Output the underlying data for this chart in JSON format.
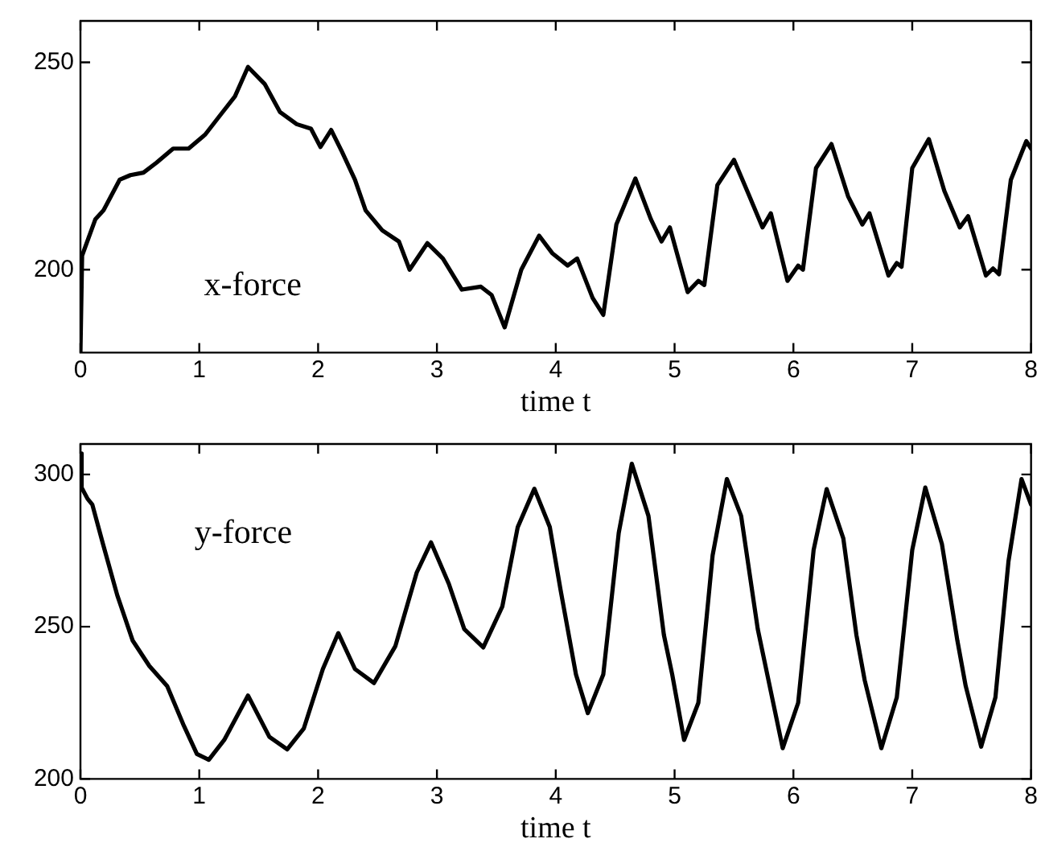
{
  "chart_data": [
    {
      "type": "line",
      "xlabel": "time t",
      "annotations": [
        "x-force"
      ],
      "xlim": [
        0,
        8
      ],
      "xticks": [
        0,
        1,
        2,
        3,
        4,
        5,
        6,
        7,
        8
      ],
      "ylim": [
        180,
        260
      ],
      "yticks": [
        200,
        250
      ],
      "grid": false,
      "legend": false,
      "marker": "none",
      "line_style": "solid",
      "x": [
        0,
        0.014,
        0.126,
        0.194,
        0.33,
        0.42,
        0.53,
        0.64,
        0.78,
        0.91,
        1.05,
        1.18,
        1.3,
        1.41,
        1.55,
        1.68,
        1.82,
        1.94,
        2.02,
        2.11,
        2.2,
        2.31,
        2.4,
        2.54,
        2.68,
        2.77,
        2.92,
        3.05,
        3.21,
        3.37,
        3.46,
        3.57,
        3.71,
        3.86,
        3.97,
        4.1,
        4.18,
        4.31,
        4.4,
        4.51,
        4.67,
        4.8,
        4.89,
        4.96,
        5.11,
        5.2,
        5.25,
        5.36,
        5.5,
        5.63,
        5.74,
        5.81,
        5.95,
        6.04,
        6.08,
        6.19,
        6.32,
        6.46,
        6.58,
        6.64,
        6.8,
        6.87,
        6.91,
        7,
        7.14,
        7.27,
        7.4,
        7.47,
        7.62,
        7.68,
        7.73,
        7.83,
        7.96,
        8
      ],
      "series": [
        {
          "color": "#000000",
          "values": [
            180,
            203.4,
            212.2,
            214.3,
            221.7,
            222.8,
            223.4,
            225.8,
            229.2,
            229.2,
            232.6,
            237.4,
            241.8,
            248.9,
            244.8,
            238,
            235.1,
            234,
            229.6,
            233.7,
            228.5,
            221.7,
            214.3,
            209.5,
            206.8,
            200,
            206.4,
            202.7,
            195.2,
            195.9,
            193.9,
            186.1,
            200,
            208.2,
            204,
            201,
            202.7,
            193.2,
            189.1,
            210.9,
            222,
            212.2,
            206.8,
            210.2,
            194.6,
            197.3,
            196.3,
            220.4,
            226.5,
            217.7,
            210.2,
            213.6,
            197.3,
            201,
            200,
            224.5,
            230.3,
            217.7,
            210.9,
            213.6,
            198.6,
            201.6,
            200.7,
            224.5,
            231.5,
            219,
            210.2,
            212.9,
            198.6,
            200.3,
            198.9,
            221.7,
            231,
            229.2
          ]
        }
      ]
    },
    {
      "type": "line",
      "xlabel": "time t",
      "annotations": [
        "y-force"
      ],
      "xlim": [
        0,
        8
      ],
      "xticks": [
        0,
        1,
        2,
        3,
        4,
        5,
        6,
        7,
        8
      ],
      "ylim": [
        200,
        310
      ],
      "yticks": [
        200,
        250,
        300
      ],
      "grid": false,
      "legend": false,
      "marker": "none",
      "line_style": "solid",
      "x": [
        0,
        0.01,
        0.06,
        0.1,
        0.19,
        0.31,
        0.44,
        0.58,
        0.73,
        0.87,
        0.98,
        1.08,
        1.21,
        1.41,
        1.59,
        1.74,
        1.88,
        2.04,
        2.17,
        2.31,
        2.47,
        2.65,
        2.83,
        2.95,
        3.1,
        3.23,
        3.39,
        3.55,
        3.68,
        3.82,
        3.95,
        4.04,
        4.17,
        4.27,
        4.4,
        4.53,
        4.64,
        4.78,
        4.91,
        4.98,
        5.08,
        5.2,
        5.32,
        5.44,
        5.56,
        5.7,
        5.78,
        5.91,
        6.04,
        6.17,
        6.28,
        6.42,
        6.53,
        6.6,
        6.74,
        6.87,
        7,
        7.11,
        7.25,
        7.38,
        7.45,
        7.58,
        7.7,
        7.81,
        7.92,
        8
      ],
      "series": [
        {
          "color": "#000000",
          "values": [
            306.9,
            295.7,
            292,
            290.1,
            277.1,
            260.3,
            245.4,
            237.1,
            230.5,
            217.5,
            208.2,
            206.3,
            212.8,
            227.4,
            213.8,
            209.7,
            216.6,
            236.1,
            247.9,
            236.1,
            231.5,
            243.6,
            267.8,
            277.7,
            264.1,
            249.2,
            243.2,
            256.6,
            282.7,
            295.3,
            282.7,
            262.2,
            234.3,
            221.6,
            234.3,
            280.8,
            303.5,
            286.4,
            247.3,
            234.3,
            212.8,
            225,
            273.4,
            298.5,
            286.4,
            249.2,
            234.3,
            210.1,
            225,
            275.2,
            295.2,
            279,
            247.3,
            232.4,
            210.1,
            226.8,
            275.2,
            295.7,
            277.1,
            245.4,
            230.5,
            210.6,
            226.8,
            271.5,
            298.5,
            290.1
          ]
        }
      ]
    }
  ]
}
